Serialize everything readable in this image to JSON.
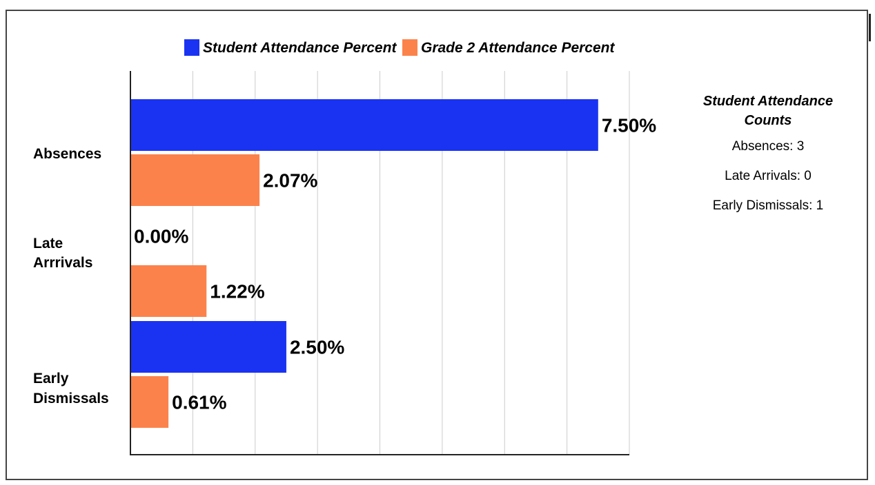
{
  "chart_data": {
    "type": "bar",
    "orientation": "horizontal",
    "categories": [
      "Absences",
      "Late Arrrivals",
      "Early Dismissals"
    ],
    "category_lines": [
      [
        "Absences"
      ],
      [
        "Late",
        "Arrrivals"
      ],
      [
        "Early",
        "Dismissals"
      ]
    ],
    "series": [
      {
        "name": "Student Attendance Percent",
        "color": "#1a33f2",
        "values": [
          7.5,
          0.0,
          2.5
        ],
        "labels": [
          "7.50%",
          "0.00%",
          "2.50%"
        ]
      },
      {
        "name": "Grade 2 Attendance Percent",
        "color": "#fc824b",
        "values": [
          2.07,
          1.22,
          0.61
        ],
        "labels": [
          "2.07%",
          "1.22%",
          "0.61%"
        ]
      }
    ],
    "xlim": [
      0,
      8
    ],
    "gridlines": 8,
    "legend_position": "top",
    "title": "",
    "xlabel": "",
    "ylabel": ""
  },
  "side_panel": {
    "title_line1": "Student Attendance",
    "title_line2": "Counts",
    "counts": [
      "Absences: 3",
      "Late Arrivals: 0",
      "Early Dismissals: 1"
    ]
  }
}
